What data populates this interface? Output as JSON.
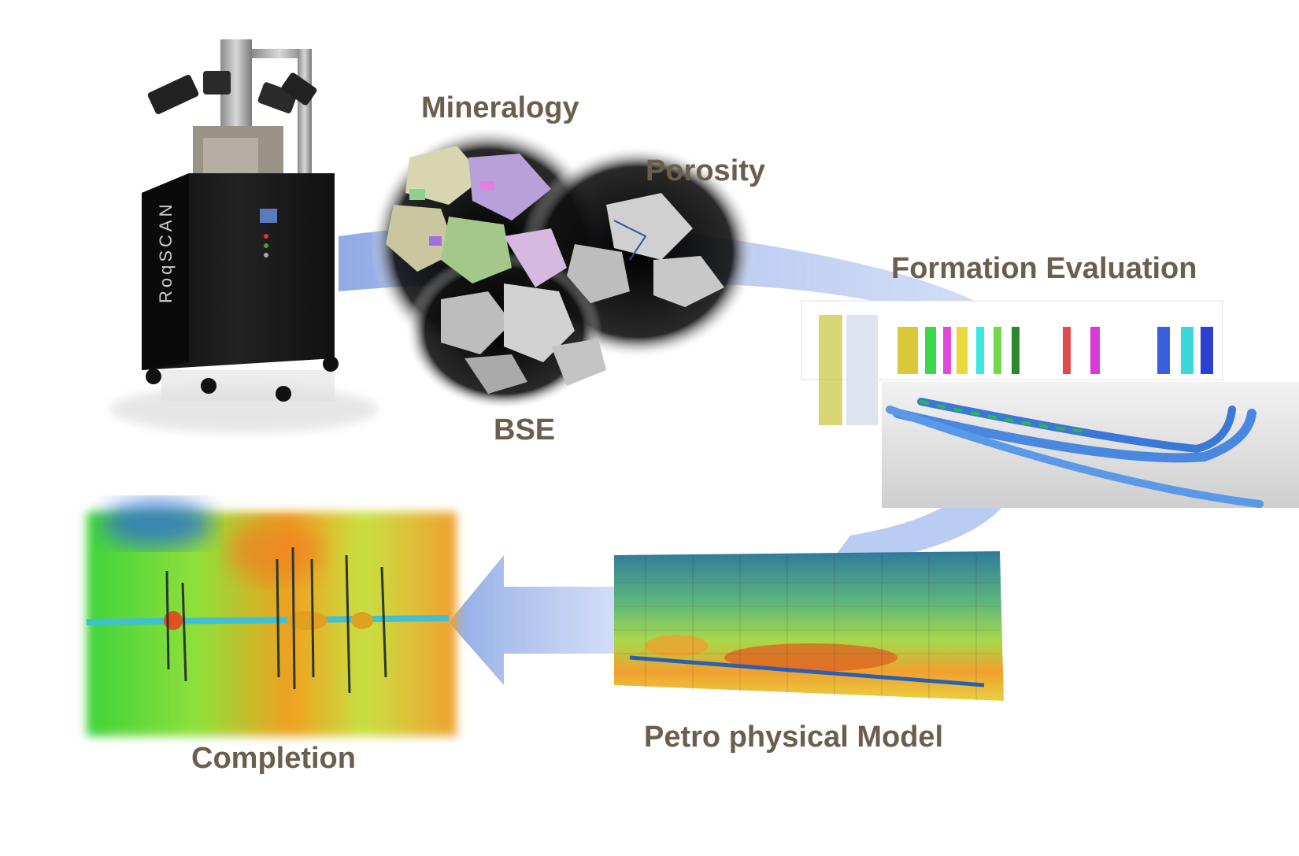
{
  "labels": {
    "mineralogy": "Mineralogy",
    "porosity": "Porosity",
    "bse": "BSE",
    "formation_evaluation": "Formation Evaluation",
    "petro_physical_model": "Petro physical Model",
    "completion": "Completion"
  },
  "instrument": {
    "brand_text": "RoqSCAN"
  },
  "colors": {
    "label_text": "#6b5e4c",
    "flow_arrow": "#7f9ee0",
    "instrument_body": "#1c1c1c"
  }
}
